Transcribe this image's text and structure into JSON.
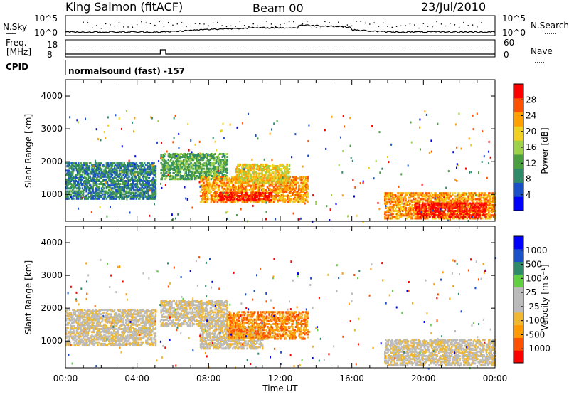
{
  "header": {
    "station": "King Salmon (fitACF)",
    "beam": "Beam 00",
    "date": "23/Jul/2010"
  },
  "top_panels": {
    "nsky_label": "N.Sky",
    "nsearch_label": "N.Search",
    "noise_ticks": [
      "10^5",
      "10^0"
    ],
    "freq_label_line1": "Freq.",
    "freq_label_line2": "[MHz]",
    "freq_ticks": [
      "18",
      "8"
    ],
    "nave_label": "Nave",
    "nave_ticks": [
      "60",
      "0"
    ],
    "cpid_label": "CPID",
    "cpid_value": "normalsound (fast) -157"
  },
  "chart_data": [
    {
      "type": "heatmap",
      "title": "",
      "xlabel": "Time UT",
      "ylabel": "Slant Range [km]",
      "x_ticks": [
        "00:00",
        "04:00",
        "08:00",
        "12:00",
        "16:00",
        "20:00",
        "00:00"
      ],
      "y_ticks": [
        1000,
        2000,
        3000,
        4000
      ],
      "xlim_hours": [
        0,
        24
      ],
      "ylim_km": [
        180,
        4500
      ],
      "colorbar": {
        "label": "Power [dB]",
        "ticks": [
          "28",
          "24",
          "20",
          "16",
          "12",
          "8",
          "4"
        ],
        "colors": [
          "#0000ff",
          "#1a50c8",
          "#2f8a6a",
          "#4aa040",
          "#9dd14a",
          "#f0d020",
          "#ffa000",
          "#ff5000",
          "#ff0000"
        ]
      },
      "echo_regions": [
        {
          "t_start": 0.0,
          "t_end": 5.0,
          "r_start": 900,
          "r_end": 2000,
          "level": 2
        },
        {
          "t_start": 5.3,
          "t_end": 9.0,
          "r_start": 1500,
          "r_end": 2300,
          "level": 3
        },
        {
          "t_start": 7.5,
          "t_end": 13.5,
          "r_start": 800,
          "r_end": 1600,
          "level": 6
        },
        {
          "t_start": 8.5,
          "t_end": 11.5,
          "r_start": 850,
          "r_end": 1100,
          "level": 8
        },
        {
          "t_start": 9.5,
          "t_end": 12.5,
          "r_start": 1400,
          "r_end": 1950,
          "level": 5
        },
        {
          "t_start": 17.8,
          "t_end": 24.0,
          "r_start": 300,
          "r_end": 1100,
          "level": 6
        },
        {
          "t_start": 19.5,
          "t_end": 23.5,
          "r_start": 350,
          "r_end": 800,
          "level": 8
        }
      ]
    },
    {
      "type": "heatmap",
      "title": "",
      "xlabel": "Time UT",
      "ylabel": "Slant Range [km]",
      "x_ticks": [
        "00:00",
        "04:00",
        "08:00",
        "12:00",
        "16:00",
        "20:00",
        "00:00"
      ],
      "y_ticks": [
        1000,
        2000,
        3000,
        4000
      ],
      "xlim_hours": [
        0,
        24
      ],
      "ylim_km": [
        180,
        4500
      ],
      "colorbar": {
        "label": "Velocity [m s⁻¹]",
        "ticks": [
          "1000",
          "500",
          "100",
          "25",
          "-25",
          "-100",
          "-500",
          "-1000"
        ],
        "colors": [
          "#ff0000",
          "#ff5000",
          "#ff9a00",
          "#f0b830",
          "#bbbbbb",
          "#bbbbbb",
          "#60d040",
          "#2f8a6a",
          "#1a50c8",
          "#0000ff"
        ]
      },
      "echo_regions": [
        {
          "t_start": 0.0,
          "t_end": 5.0,
          "r_start": 900,
          "r_end": 2000,
          "level": 4
        },
        {
          "t_start": 5.3,
          "t_end": 9.0,
          "r_start": 1500,
          "r_end": 2300,
          "level": 4
        },
        {
          "t_start": 7.5,
          "t_end": 11.0,
          "r_start": 800,
          "r_end": 1500,
          "level": 4
        },
        {
          "t_start": 9.0,
          "t_end": 13.5,
          "r_start": 1100,
          "r_end": 1950,
          "level": 2
        },
        {
          "t_start": 17.8,
          "t_end": 24.0,
          "r_start": 300,
          "r_end": 1100,
          "level": 4
        }
      ]
    }
  ]
}
